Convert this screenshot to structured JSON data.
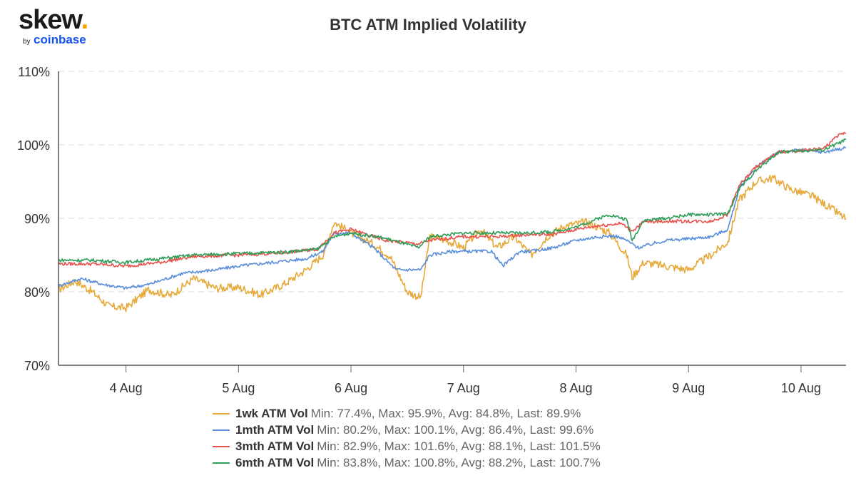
{
  "logo": {
    "brand": "skew",
    "dot": ".",
    "by": "by",
    "company": "coinbase"
  },
  "chart_data": {
    "type": "line",
    "title": "BTC ATM Implied Volatility",
    "xlabel": "",
    "ylabel": "",
    "x_range": [
      3.4,
      10.4
    ],
    "ylim": [
      70,
      110
    ],
    "y_ticks": [
      70,
      80,
      90,
      100,
      110
    ],
    "y_tick_labels": [
      "70%",
      "80%",
      "90%",
      "100%",
      "110%"
    ],
    "x_ticks": [
      4,
      5,
      6,
      7,
      8,
      9,
      10
    ],
    "x_tick_labels": [
      "4 Aug",
      "5 Aug",
      "6 Aug",
      "7 Aug",
      "8 Aug",
      "9 Aug",
      "10 Aug"
    ],
    "grid": "horizontal dashed",
    "legend_position": "bottom",
    "x_unit": "day of August",
    "series": [
      {
        "name": "1wk ATM Vol",
        "stats": "Min: 77.4%, Max: 95.9%, Avg: 84.8%, Last: 89.9%",
        "color": "#e6a93a",
        "x": [
          3.4,
          3.55,
          3.7,
          3.85,
          4.0,
          4.2,
          4.4,
          4.6,
          4.8,
          5.0,
          5.2,
          5.4,
          5.6,
          5.75,
          5.85,
          6.0,
          6.2,
          6.35,
          6.5,
          6.62,
          6.7,
          6.85,
          7.0,
          7.15,
          7.3,
          7.45,
          7.6,
          7.75,
          7.9,
          8.1,
          8.3,
          8.45,
          8.5,
          8.6,
          8.8,
          9.0,
          9.2,
          9.35,
          9.45,
          9.6,
          9.75,
          9.9,
          10.1,
          10.3,
          10.4
        ],
        "values": [
          80.3,
          81.5,
          80.0,
          78.0,
          77.8,
          80.3,
          79.5,
          81.8,
          80.5,
          80.6,
          79.6,
          81.0,
          83.0,
          85.0,
          89.5,
          88.0,
          86.5,
          84.8,
          80.0,
          79.2,
          87.5,
          87.0,
          86.0,
          88.5,
          86.0,
          87.5,
          85.0,
          87.6,
          89.0,
          89.5,
          88.0,
          85.0,
          82.0,
          84.0,
          83.5,
          83.0,
          85.0,
          86.8,
          92.5,
          95.0,
          95.5,
          94.0,
          93.0,
          91.0,
          89.9
        ]
      },
      {
        "name": "1mth ATM Vol",
        "stats": "Min: 80.2%, Max: 100.1%, Avg: 86.4%, Last: 99.6%",
        "color": "#5b8fd9",
        "x": [
          3.4,
          3.6,
          3.8,
          4.0,
          4.2,
          4.5,
          4.8,
          5.0,
          5.3,
          5.6,
          5.75,
          5.85,
          6.0,
          6.2,
          6.4,
          6.62,
          6.7,
          6.9,
          7.1,
          7.25,
          7.35,
          7.5,
          7.6,
          7.8,
          8.0,
          8.2,
          8.35,
          8.45,
          8.55,
          8.8,
          9.0,
          9.2,
          9.35,
          9.45,
          9.6,
          9.8,
          10.0,
          10.2,
          10.4
        ],
        "values": [
          80.8,
          81.8,
          81.0,
          80.5,
          81.0,
          82.5,
          83.0,
          83.5,
          84.0,
          84.5,
          85.5,
          88.0,
          88.0,
          86.0,
          83.0,
          83.0,
          85.0,
          85.5,
          85.5,
          85.5,
          83.5,
          85.5,
          85.5,
          86.0,
          87.0,
          87.5,
          87.6,
          87.0,
          86.0,
          87.0,
          87.2,
          87.5,
          88.5,
          94.0,
          97.0,
          99.0,
          99.3,
          99.0,
          99.6
        ]
      },
      {
        "name": "3mth ATM Vol",
        "stats": "Min: 82.9%, Max: 101.6%, Avg: 88.1%, Last: 101.5%",
        "color": "#e8524c",
        "x": [
          3.4,
          3.7,
          4.0,
          4.3,
          4.6,
          5.0,
          5.4,
          5.7,
          5.85,
          6.0,
          6.3,
          6.6,
          6.7,
          7.0,
          7.3,
          7.6,
          7.8,
          8.0,
          8.2,
          8.4,
          8.5,
          8.6,
          8.8,
          9.0,
          9.2,
          9.35,
          9.45,
          9.6,
          9.8,
          10.0,
          10.2,
          10.35,
          10.4
        ],
        "values": [
          83.8,
          83.8,
          83.5,
          84.0,
          84.8,
          85.0,
          85.3,
          85.8,
          88.0,
          88.5,
          87.0,
          86.5,
          87.0,
          87.5,
          87.5,
          87.8,
          87.8,
          88.5,
          89.0,
          89.3,
          88.3,
          89.5,
          89.6,
          89.6,
          89.6,
          90.5,
          94.5,
          97.0,
          99.0,
          99.2,
          99.5,
          101.5,
          101.5
        ]
      },
      {
        "name": "6mth ATM Vol",
        "stats": "Min: 83.8%, Max: 100.8%, Avg: 88.2%, Last: 100.7%",
        "color": "#2e9e5a",
        "x": [
          3.4,
          3.7,
          4.0,
          4.3,
          4.6,
          5.0,
          5.4,
          5.7,
          5.85,
          6.0,
          6.3,
          6.6,
          6.7,
          7.0,
          7.3,
          7.6,
          7.8,
          8.0,
          8.2,
          8.3,
          8.45,
          8.5,
          8.6,
          8.8,
          9.0,
          9.2,
          9.35,
          9.45,
          9.6,
          9.8,
          10.0,
          10.2,
          10.4
        ],
        "values": [
          84.3,
          84.3,
          84.0,
          84.5,
          85.0,
          85.2,
          85.4,
          85.8,
          87.5,
          88.0,
          87.3,
          86.0,
          87.5,
          88.0,
          88.0,
          88.0,
          88.2,
          88.8,
          90.0,
          90.5,
          89.8,
          87.0,
          89.7,
          90.0,
          90.5,
          90.5,
          90.6,
          94.0,
          96.5,
          99.0,
          99.2,
          99.3,
          100.7
        ]
      }
    ]
  }
}
